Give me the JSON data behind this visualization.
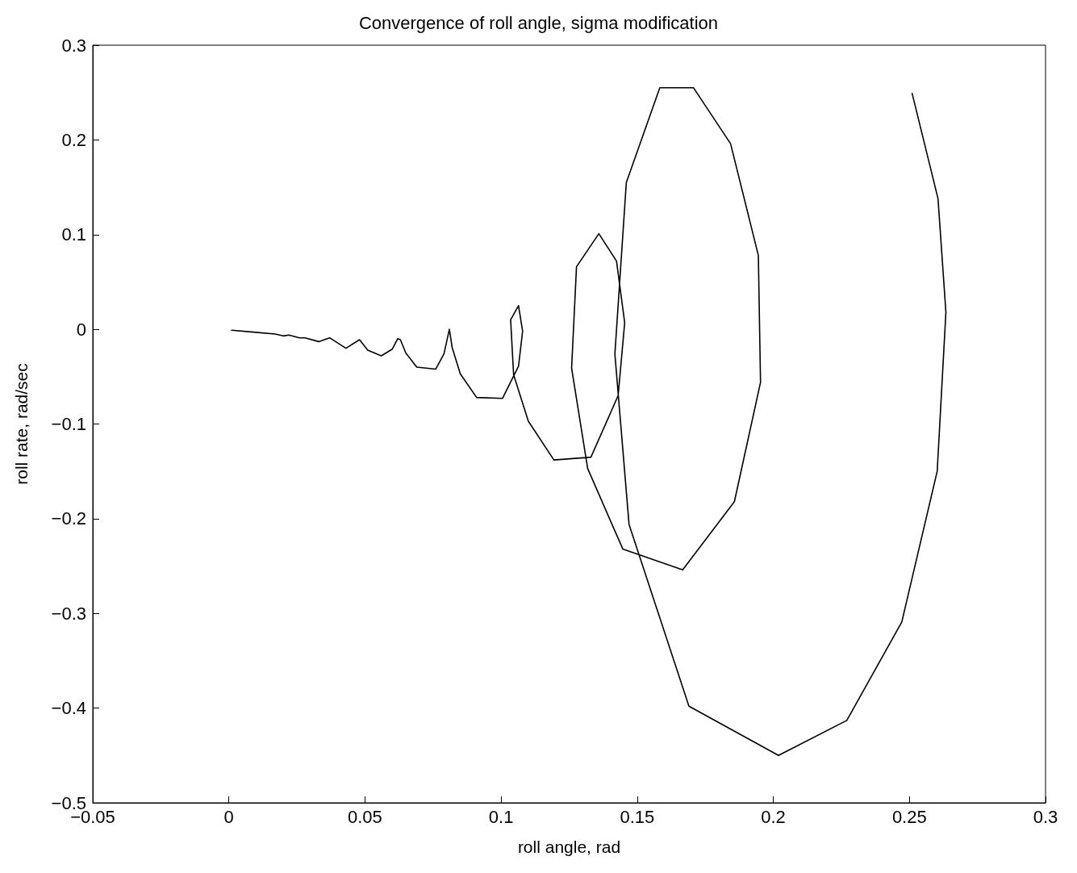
{
  "chart_data": {
    "type": "line",
    "title": "Convergence of roll angle, sigma modification",
    "xlabel": "roll angle, rad",
    "ylabel": "roll rate, rad/sec",
    "xlim": [
      -0.05,
      0.3
    ],
    "xticks": [
      -0.05,
      0,
      0.05,
      0.1,
      0.15,
      0.2,
      0.25,
      0.3
    ],
    "ylim": [
      -0.5,
      0.3
    ],
    "yticks": [
      -0.5,
      -0.4,
      -0.3,
      -0.2,
      -0.1,
      0,
      0.1,
      0.2,
      0.3
    ],
    "grid": false,
    "marker": "none",
    "line_style": "solid",
    "series": [
      {
        "color": "#000000",
        "x": [
          0.251,
          0.2605,
          0.2634,
          0.2602,
          0.2472,
          0.227,
          0.2019,
          0.169,
          0.147,
          0.1418,
          0.146,
          0.1583,
          0.1707,
          0.1843,
          0.1945,
          0.1953,
          0.1857,
          0.1667,
          0.1447,
          0.1318,
          0.1259,
          0.1277,
          0.1359,
          0.1424,
          0.1454,
          0.143,
          0.133,
          0.1194,
          0.11,
          0.1046,
          0.1035,
          0.1064,
          0.1079,
          0.1064,
          0.1005,
          0.091,
          0.085,
          0.082,
          0.081,
          0.079,
          0.076,
          0.069,
          0.065,
          0.063,
          0.062,
          0.06,
          0.056,
          0.051,
          0.048,
          0.043,
          0.037,
          0.033,
          0.028,
          0.026,
          0.022,
          0.02,
          0.017,
          0.009,
          0.001
        ],
        "values": [
          0.249,
          0.138,
          0.018,
          -0.15,
          -0.309,
          -0.413,
          -0.45,
          -0.398,
          -0.206,
          -0.026,
          0.155,
          0.255,
          0.255,
          0.196,
          0.078,
          -0.056,
          -0.182,
          -0.254,
          -0.232,
          -0.147,
          -0.041,
          0.066,
          0.101,
          0.072,
          0.007,
          -0.07,
          -0.135,
          -0.138,
          -0.097,
          -0.048,
          0.01,
          0.025,
          -0.002,
          -0.039,
          -0.073,
          -0.072,
          -0.047,
          -0.019,
          0,
          -0.026,
          -0.042,
          -0.04,
          -0.025,
          -0.011,
          -0.01,
          -0.021,
          -0.028,
          -0.022,
          -0.011,
          -0.02,
          -0.009,
          -0.013,
          -0.009,
          -0.009,
          -0.006,
          -0.007,
          -0.005,
          -0.003,
          -0.001
        ]
      }
    ]
  }
}
